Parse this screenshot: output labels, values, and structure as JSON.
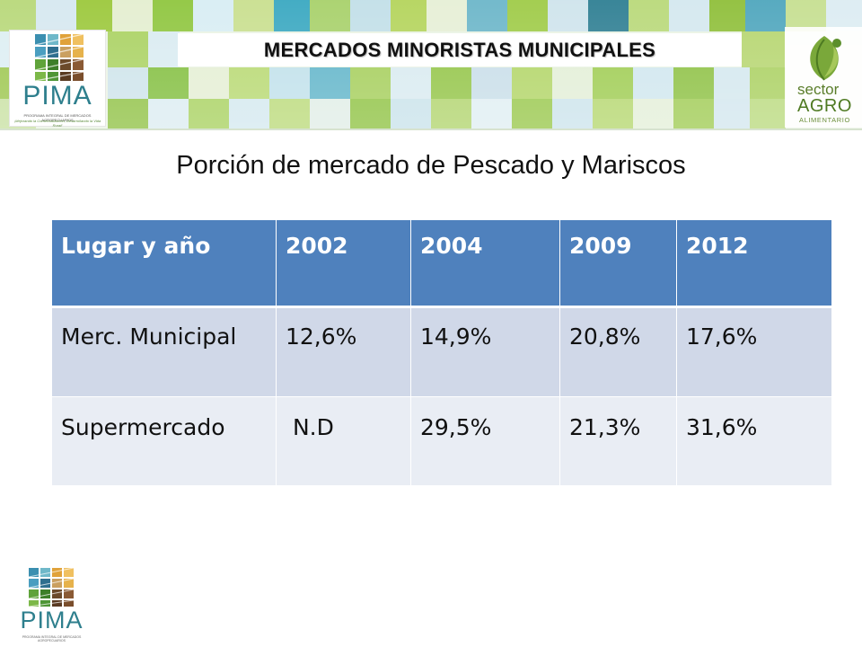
{
  "header": {
    "title": "MERCADOS MINORISTAS MUNICIPALES",
    "pima_logo": {
      "word": "PIMA",
      "subtitle": "PROGRAMA INTEGRAL DE MERCADOS AGROPECUARIOS",
      "tagline": "¡Mejorando la Comercialización, Desarrollando la Vida Rural!"
    },
    "agro_logo": {
      "line1": "sector",
      "line2": "AGRO",
      "line3": "ALIMENTARIO"
    }
  },
  "slide": {
    "title": "Porción de mercado de Pescado y Mariscos"
  },
  "table": {
    "headers": [
      "Lugar y año",
      "2002",
      "2004",
      "2009",
      "2012"
    ],
    "rows": [
      [
        "Merc. Municipal",
        "12,6%",
        "14,9%",
        "20,8%",
        "17,6%"
      ],
      [
        "Supermercado",
        " N.D",
        "29,5%",
        "21,3%",
        "31,6%"
      ]
    ]
  },
  "footer": {
    "pima_logo": {
      "word": "PIMA",
      "subtitle": "PROGRAMA INTEGRAL DE MERCADOS AGROPECUARIOS"
    }
  },
  "colors": {
    "header_blue": "#4f81bd",
    "row_odd": "#d0d8e8",
    "row_even": "#e9edf4",
    "pima_teal": "#2e7f8d",
    "agro_green": "#4f7a22"
  }
}
